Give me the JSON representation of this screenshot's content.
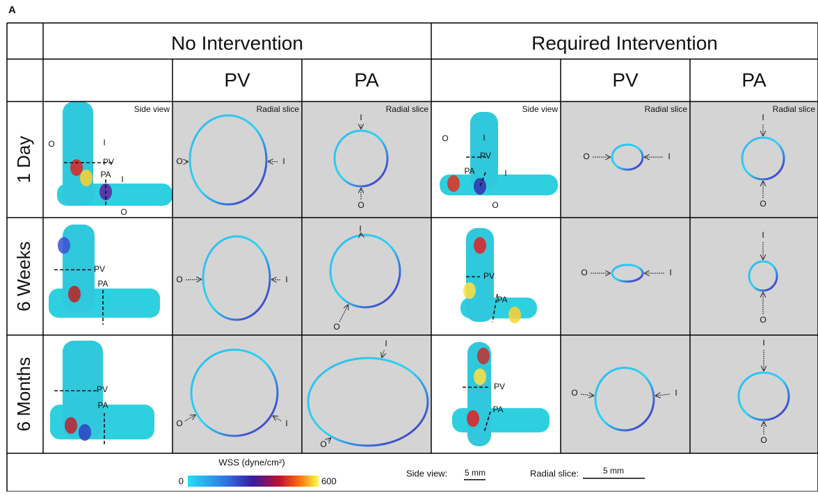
{
  "panel_label": "A",
  "headers": {
    "groups": [
      "No Intervention",
      "Required Intervention"
    ],
    "columns": [
      "PV",
      "PA",
      "PV",
      "PA"
    ]
  },
  "rows": [
    {
      "label": "1 Day",
      "cells": [
        {
          "view": "Side view",
          "labels": [
            "O",
            "I",
            "PV",
            "PA",
            "I",
            "O"
          ]
        },
        {
          "view": "Radial slice",
          "labels": [
            "O",
            "I"
          ]
        },
        {
          "view": "Radial slice",
          "labels": [
            "I",
            "O"
          ]
        },
        {
          "view": "Side view",
          "labels": [
            "O",
            "I",
            "PV",
            "PA",
            "I",
            "O"
          ]
        },
        {
          "view": "Radial slice",
          "labels": [
            "O",
            "I"
          ]
        },
        {
          "view": "Radial slice",
          "labels": [
            "I",
            "O"
          ]
        }
      ]
    },
    {
      "label": "6 Weeks",
      "cells": [
        {
          "labels": [
            "PV",
            "PA"
          ]
        },
        {
          "labels": [
            "O",
            "I"
          ]
        },
        {
          "labels": [
            "I",
            "O"
          ]
        },
        {
          "labels": [
            "PV",
            "PA"
          ]
        },
        {
          "labels": [
            "O",
            "I"
          ]
        },
        {
          "labels": [
            "I",
            "O"
          ]
        }
      ]
    },
    {
      "label": "6 Months",
      "cells": [
        {
          "labels": [
            "PV",
            "PA"
          ]
        },
        {
          "labels": [
            "O",
            "I"
          ]
        },
        {
          "labels": [
            "I",
            "O"
          ]
        },
        {
          "labels": [
            "PV",
            "PA"
          ]
        },
        {
          "labels": [
            "O",
            "I"
          ]
        },
        {
          "labels": [
            "I",
            "O"
          ]
        }
      ]
    }
  ],
  "legend": {
    "title": "WSS (dyne/cm²)",
    "min": "0",
    "max": "600",
    "side_view_label": "Side view:",
    "side_view_scale": "5 mm",
    "radial_slice_label": "Radial slice:",
    "radial_slice_scale": "5 mm"
  }
}
